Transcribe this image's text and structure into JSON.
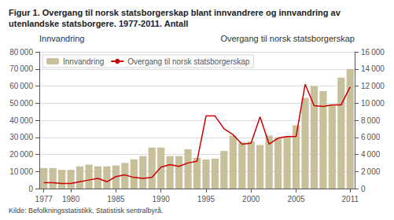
{
  "chart_data": {
    "type": "bar",
    "title": "Figur 1. Overgang til norsk statsborgerskap blant innvandrere og innvandring av\nutenlandske statsborgere. 1977-2011. Antall",
    "annotations": [
      "Kilde: Befolkningsstatistikk, Statistisk sentralbyrå."
    ],
    "ylabel": "Innvandring",
    "y2label": "Overgang til norsk statsborgerskap",
    "x": [
      1977,
      1978,
      1979,
      1980,
      1981,
      1982,
      1983,
      1984,
      1985,
      1986,
      1987,
      1988,
      1989,
      1990,
      1991,
      1992,
      1993,
      1994,
      1995,
      1996,
      1997,
      1998,
      1999,
      2000,
      2001,
      2002,
      2003,
      2004,
      2005,
      2006,
      2007,
      2008,
      2009,
      2010,
      2011
    ],
    "series": [
      {
        "name": "Innvandring",
        "type": "bar",
        "color": "#c8c09a",
        "values": [
          12000,
          12000,
          11000,
          11000,
          13000,
          14000,
          13000,
          13000,
          13500,
          15000,
          17000,
          19000,
          24000,
          24000,
          19000,
          19000,
          23000,
          18000,
          17000,
          17500,
          22000,
          31000,
          27000,
          27500,
          25500,
          31000,
          30000,
          30500,
          37000,
          53000,
          60000,
          57000,
          49000,
          65000,
          70000
        ]
      },
      {
        "name": "Overgang til norsk statsborgerskap",
        "type": "line",
        "color": "#cc0000",
        "axis": "y2",
        "values": [
          700,
          700,
          600,
          600,
          800,
          1000,
          1200,
          800,
          1400,
          1600,
          1300,
          1200,
          1300,
          2500,
          2800,
          2600,
          3000,
          3200,
          8500,
          8500,
          7000,
          6300,
          5200,
          5300,
          8400,
          5200,
          5900,
          6100,
          6100,
          12200,
          9700,
          9600,
          9800,
          9800,
          11900
        ]
      }
    ],
    "xlim": [
      1976.5,
      2011.5
    ],
    "xticks": [
      1977,
      1980,
      1985,
      1990,
      1995,
      2000,
      2005,
      2011
    ],
    "ylim": [
      0,
      80000
    ],
    "yticks": [
      0,
      {
        "value": 10000,
        "label": "10 000"
      },
      {
        "value": 20000,
        "label": "20 000"
      },
      {
        "value": 30000,
        "label": "30 000"
      },
      {
        "value": 40000,
        "label": "40 000"
      },
      {
        "value": 50000,
        "label": "50 000"
      },
      {
        "value": 60000,
        "label": "60 000"
      },
      {
        "value": 70000,
        "label": "70 000"
      },
      {
        "value": 80000,
        "label": "80 000"
      }
    ],
    "y2lim": [
      0,
      16000
    ],
    "y2ticks": [
      0,
      {
        "value": 2000,
        "label": "2 000"
      },
      {
        "value": 4000,
        "label": "4 000"
      },
      {
        "value": 6000,
        "label": "6 000"
      },
      {
        "value": 8000,
        "label": "8 000"
      },
      {
        "value": 10000,
        "label": "10 000"
      },
      {
        "value": 12000,
        "label": "12 000"
      },
      {
        "value": 14000,
        "label": "14 000"
      },
      {
        "value": 16000,
        "label": "16 000"
      }
    ],
    "grid": true,
    "legend": "upper left"
  }
}
